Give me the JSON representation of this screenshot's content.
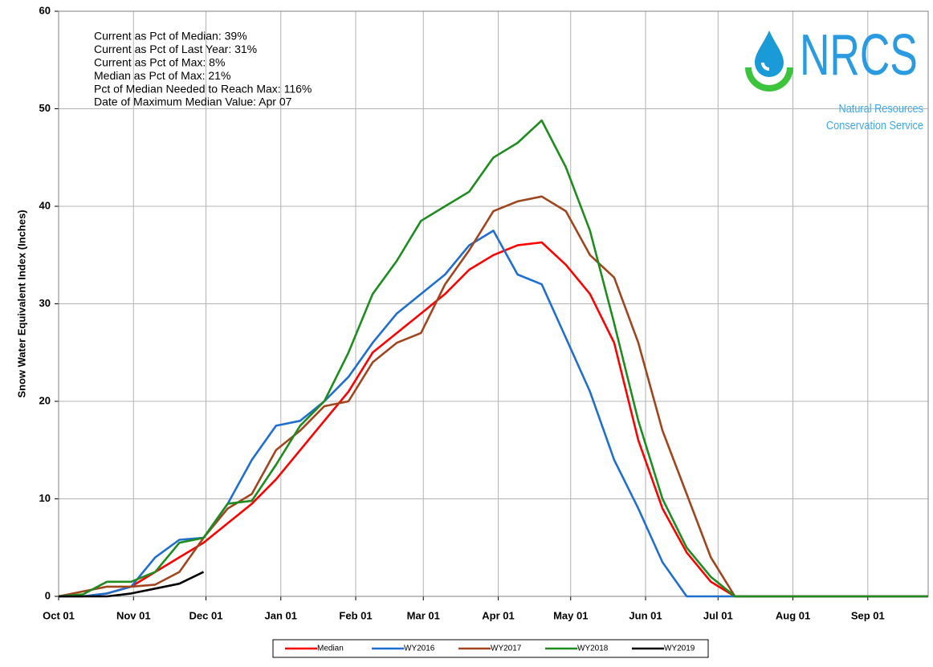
{
  "chart_data": {
    "type": "line",
    "y_label": "Snow Water Equivalent Index (Inches)",
    "notes": [
      "Current as Pct of Median:  39%",
      "Current as Pct of Last Year: 31%",
      "Current as Pct of Max: 8%",
      "Median  as Pct of Max: 21%",
      "Pct of Median Needed to Reach Max: 116%",
      "Date of Maximum  Median Value: Apr 07"
    ],
    "logo": {
      "name": "NRCS",
      "line1": "Natural Resources",
      "line2": "Conservation Service"
    },
    "x": [
      0,
      10,
      20,
      30,
      40,
      50,
      60,
      70,
      80,
      90,
      100,
      110,
      120,
      130,
      140,
      150,
      160,
      170,
      180,
      190,
      200,
      210,
      220,
      230,
      240,
      250,
      260,
      270,
      280,
      290,
      300,
      310,
      320,
      330,
      340,
      350,
      360
    ],
    "xlim": [
      0,
      360
    ],
    "xticks": [
      {
        "value": 0,
        "label": "Oct 01"
      },
      {
        "value": 31,
        "label": "Nov 01"
      },
      {
        "value": 61,
        "label": "Dec 01"
      },
      {
        "value": 92,
        "label": "Jan 01"
      },
      {
        "value": 123,
        "label": "Feb 01"
      },
      {
        "value": 151,
        "label": "Mar 01"
      },
      {
        "value": 182,
        "label": "Apr 01"
      },
      {
        "value": 212,
        "label": "May 01"
      },
      {
        "value": 243,
        "label": "Jun 01"
      },
      {
        "value": 273,
        "label": "Jul 01"
      },
      {
        "value": 304,
        "label": "Aug 01"
      },
      {
        "value": 335,
        "label": "Sep 01"
      }
    ],
    "ylim": [
      0,
      60
    ],
    "yticks": [
      0,
      10,
      20,
      30,
      40,
      50,
      60
    ],
    "grid": true,
    "legend": "bottom",
    "series": [
      {
        "name": "Median",
        "color": "#ff0000",
        "values": [
          0,
          0,
          0.3,
          1,
          2.5,
          4,
          5.5,
          7.5,
          9.5,
          12,
          15,
          18,
          21,
          25,
          27,
          29,
          31,
          33.5,
          35,
          36,
          36.3,
          34,
          31,
          26,
          16,
          9,
          4.5,
          1.5,
          0,
          0,
          0,
          0,
          0,
          0,
          0,
          0,
          0
        ]
      },
      {
        "name": "WY2016",
        "color": "#1f6fd0",
        "values": [
          0,
          0,
          0.3,
          1,
          4,
          5.8,
          6,
          9.5,
          14,
          17.5,
          18,
          20,
          22.5,
          26,
          29,
          31,
          33,
          36,
          37.5,
          33,
          32,
          26.5,
          21,
          14,
          9,
          3.5,
          0,
          0,
          0,
          0,
          0,
          0,
          0,
          0,
          0,
          0,
          0
        ]
      },
      {
        "name": "WY2017",
        "color": "#a0461e",
        "values": [
          0,
          0.5,
          1,
          1,
          1.2,
          2.5,
          6,
          9,
          10.5,
          15,
          17,
          19.5,
          20,
          24,
          26,
          27,
          32,
          35.5,
          39.5,
          40.5,
          41,
          39.5,
          35,
          32.7,
          26,
          17,
          10.5,
          4,
          0,
          0,
          0,
          0,
          0,
          0,
          0,
          0,
          0
        ]
      },
      {
        "name": "WY2018",
        "color": "#1e8c1e",
        "values": [
          0,
          0.2,
          1.5,
          1.5,
          2.5,
          5.5,
          6,
          9.5,
          9.8,
          13.5,
          17.5,
          20,
          25,
          31,
          34.4,
          38.5,
          40,
          41.5,
          45,
          46.5,
          48.8,
          44,
          37.5,
          28,
          18,
          10,
          5,
          2,
          0,
          0,
          0,
          0,
          0,
          0,
          0,
          0,
          0
        ]
      },
      {
        "name": "WY2019",
        "color": "#000000",
        "values": [
          0,
          0,
          0,
          0.3,
          0.8,
          1.3,
          2.5,
          null,
          null,
          null,
          null,
          null,
          null,
          null,
          null,
          null,
          null,
          null,
          null,
          null,
          null,
          null,
          null,
          null,
          null,
          null,
          null,
          null,
          null,
          null,
          null,
          null,
          null,
          null,
          null,
          null,
          null
        ]
      }
    ]
  }
}
